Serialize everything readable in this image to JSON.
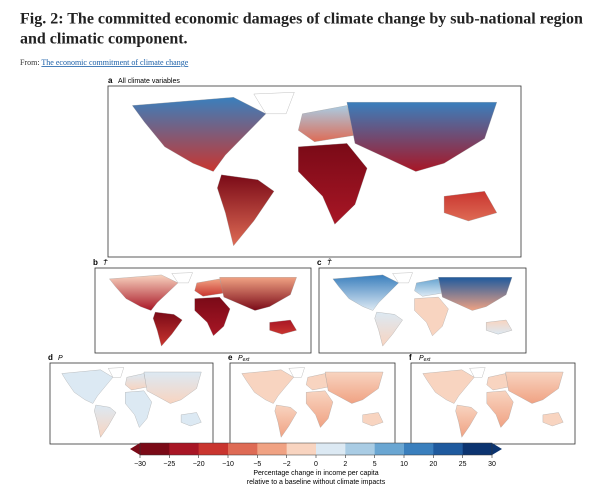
{
  "header": {
    "title": [
      "Fig. 2: The committed economic damages of climate change by sub-national region",
      "and climatic component."
    ],
    "from": "From:",
    "link": "The economic commitment of climate change"
  },
  "panels": [
    {
      "letter": "a",
      "name": "All climate variables"
    },
    {
      "letter": "b",
      "name": "T̄"
    },
    {
      "letter": "c",
      "name": "T̃"
    },
    {
      "letter": "d",
      "name": "P"
    },
    {
      "letter": "e",
      "name": "P",
      "sub": "ext"
    },
    {
      "letter": "f",
      "name": "P",
      "sub": "ext"
    }
  ],
  "colorbar": {
    "ticks": [
      {
        "value": -30,
        "label": "−30"
      },
      {
        "value": -25,
        "label": "−25"
      },
      {
        "value": -20,
        "label": "−20"
      },
      {
        "value": -10,
        "label": "−10"
      },
      {
        "value": -5,
        "label": "−5"
      },
      {
        "value": -2,
        "label": "−2"
      },
      0,
      2,
      5,
      10,
      20,
      25,
      30
    ],
    "colors": [
      "#7a0a17",
      "#a81625",
      "#c9352f",
      "#de6b55",
      "#f0a283",
      "#f8d4c0",
      "#dce9f3",
      "#a9cce4",
      "#6aa6d2",
      "#3a7fbd",
      "#1f5a9e",
      "#0c3470"
    ],
    "label": [
      "Percentage change in income per capita",
      "relative to a baseline without climate impacts"
    ]
  }
}
